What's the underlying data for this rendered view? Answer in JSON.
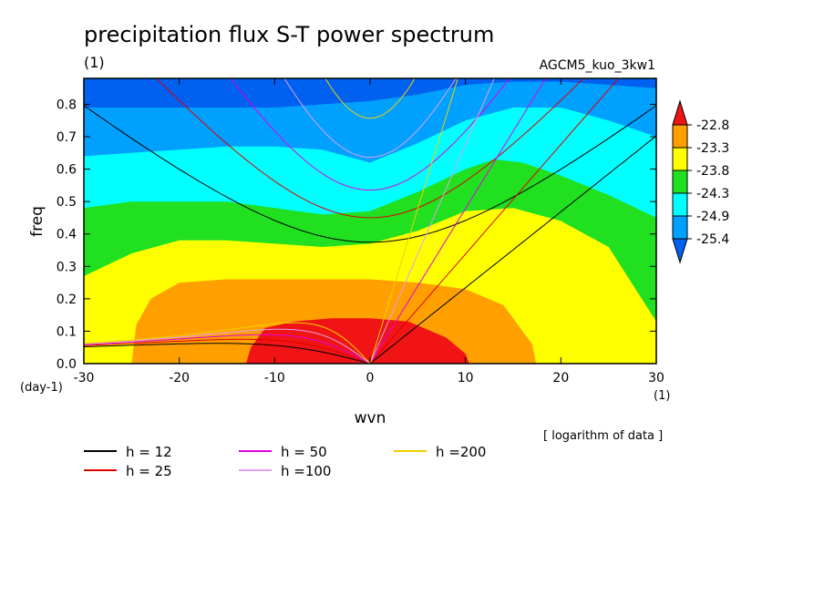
{
  "chart_data": {
    "type": "heatmap",
    "title": "precipitation flux S-T power spectrum",
    "title_unit": "(1)",
    "experiment": "AGCM5_kuo_3kw1",
    "xlabel": "wvn",
    "ylabel": "freq",
    "x_unit": "(1)",
    "y_unit": "(day-1)",
    "note": "[ logarithm of data ]",
    "xlim": [
      -30,
      30
    ],
    "ylim": [
      0,
      0.88
    ],
    "x_ticks": [
      -30,
      -20,
      -10,
      0,
      10,
      20,
      30
    ],
    "x_tick_labels": [
      "-30",
      "-20",
      "-10",
      "0",
      "10",
      "20",
      "30"
    ],
    "y_ticks": [
      0,
      0.1,
      0.2,
      0.3,
      0.4,
      0.5,
      0.6,
      0.7,
      0.8
    ],
    "y_tick_labels": [
      "0.0",
      "0.1",
      "0.2",
      "0.3",
      "0.4",
      "0.5",
      "0.6",
      "0.7",
      "0.8"
    ],
    "colorbar": {
      "labels": [
        "-22.8",
        "-23.3",
        "-23.8",
        "-24.3",
        "-24.9",
        "-25.4"
      ],
      "colors": [
        "#f01414",
        "#ffa000",
        "#ffff00",
        "#20e020",
        "#00ffff",
        "#00a0ff",
        "#0060f0"
      ]
    },
    "bands": [
      {
        "name": "darkblue",
        "color": "#0060f0",
        "upper": [
          [
            -30,
            0.9
          ],
          [
            30,
            0.9
          ]
        ]
      },
      {
        "name": "blue",
        "color": "#00a0ff",
        "upper": [
          [
            -30,
            0.79
          ],
          [
            -25,
            0.79
          ],
          [
            -20,
            0.79
          ],
          [
            -15,
            0.79
          ],
          [
            -10,
            0.79
          ],
          [
            -5,
            0.8
          ],
          [
            0,
            0.81
          ],
          [
            5,
            0.83
          ],
          [
            10,
            0.86
          ],
          [
            15,
            0.87
          ],
          [
            20,
            0.87
          ],
          [
            25,
            0.86
          ],
          [
            30,
            0.85
          ]
        ]
      },
      {
        "name": "cyan",
        "color": "#00ffff",
        "upper": [
          [
            -30,
            0.64
          ],
          [
            -25,
            0.65
          ],
          [
            -20,
            0.66
          ],
          [
            -15,
            0.67
          ],
          [
            -10,
            0.67
          ],
          [
            -5,
            0.66
          ],
          [
            0,
            0.62
          ],
          [
            5,
            0.68
          ],
          [
            10,
            0.75
          ],
          [
            15,
            0.79
          ],
          [
            20,
            0.79
          ],
          [
            25,
            0.75
          ],
          [
            30,
            0.7
          ]
        ]
      },
      {
        "name": "green",
        "color": "#20e020",
        "upper": [
          [
            -30,
            0.48
          ],
          [
            -25,
            0.5
          ],
          [
            -20,
            0.5
          ],
          [
            -15,
            0.5
          ],
          [
            -10,
            0.48
          ],
          [
            -5,
            0.46
          ],
          [
            0,
            0.47
          ],
          [
            5,
            0.53
          ],
          [
            10,
            0.6
          ],
          [
            13,
            0.63
          ],
          [
            16,
            0.62
          ],
          [
            20,
            0.58
          ],
          [
            25,
            0.52
          ],
          [
            30,
            0.45
          ]
        ]
      },
      {
        "name": "yellow",
        "color": "#ffff00",
        "upper": [
          [
            -30,
            0.27
          ],
          [
            -25,
            0.34
          ],
          [
            -20,
            0.38
          ],
          [
            -15,
            0.38
          ],
          [
            -10,
            0.37
          ],
          [
            -5,
            0.36
          ],
          [
            0,
            0.37
          ],
          [
            5,
            0.41
          ],
          [
            10,
            0.47
          ],
          [
            15,
            0.48
          ],
          [
            20,
            0.44
          ],
          [
            25,
            0.36
          ],
          [
            30,
            0.13
          ]
        ]
      },
      {
        "name": "orange",
        "color": "#ffa000",
        "upper": [
          [
            -25,
            0
          ],
          [
            -24.5,
            0.12
          ],
          [
            -23,
            0.2
          ],
          [
            -20,
            0.25
          ],
          [
            -15,
            0.26
          ],
          [
            -10,
            0.26
          ],
          [
            -5,
            0.26
          ],
          [
            0,
            0.26
          ],
          [
            5,
            0.25
          ],
          [
            10,
            0.23
          ],
          [
            14,
            0.18
          ],
          [
            17,
            0.06
          ],
          [
            17.4,
            0
          ]
        ]
      },
      {
        "name": "red",
        "color": "#f01414",
        "upper": [
          [
            -13,
            0
          ],
          [
            -12.5,
            0.05
          ],
          [
            -11,
            0.11
          ],
          [
            -8,
            0.13
          ],
          [
            -4,
            0.14
          ],
          [
            0,
            0.14
          ],
          [
            4,
            0.13
          ],
          [
            8,
            0.08
          ],
          [
            10,
            0.03
          ],
          [
            10.4,
            0
          ]
        ]
      }
    ],
    "dispersion_curves": [
      {
        "name": "h = 12",
        "depth": 12,
        "color": "#000000"
      },
      {
        "name": "h = 25",
        "depth": 25,
        "color": "#e00000"
      },
      {
        "name": "h = 50",
        "depth": 50,
        "color": "#e000e0"
      },
      {
        "name": "h =100",
        "depth": 100,
        "color": "#e0a0f0"
      },
      {
        "name": "h =200",
        "depth": 200,
        "color": "#f0d000"
      }
    ]
  }
}
